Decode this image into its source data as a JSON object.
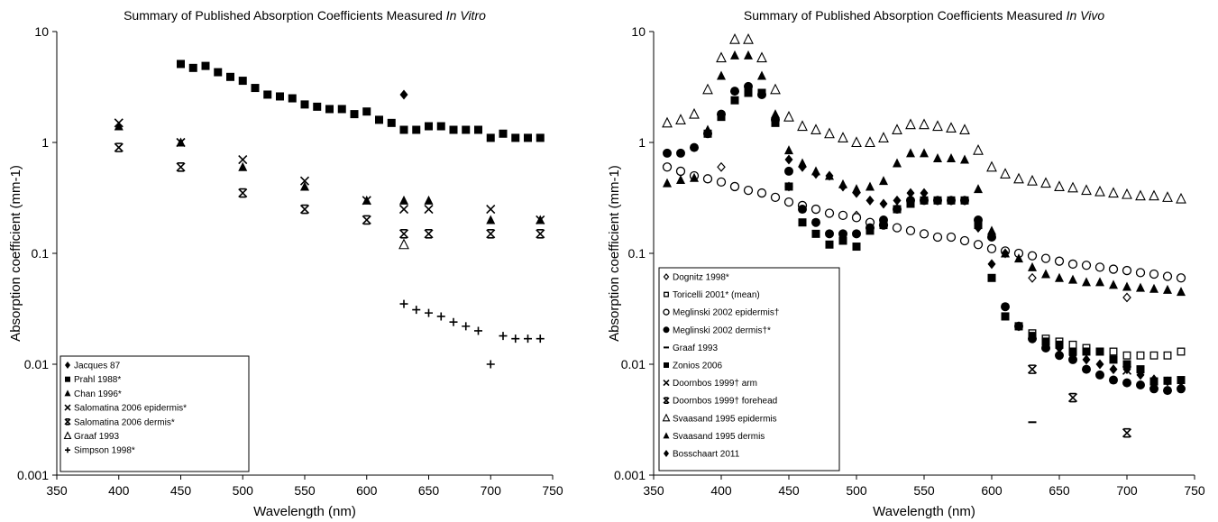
{
  "chart_data": [
    {
      "id": "invitro",
      "type": "scatter",
      "title": "Summary of Published Absorption Coefficients Measured",
      "title_italic": "In Vitro",
      "xlabel": "Wavelength (nm)",
      "ylabel": "Absorption coefficient (mm-1)",
      "xlim": [
        350,
        750
      ],
      "ylim": [
        0.001,
        10
      ],
      "yscale": "log",
      "xticks": [
        "350",
        "400",
        "450",
        "500",
        "550",
        "600",
        "650",
        "700",
        "750"
      ],
      "yticks": [
        "0.001",
        "0.01",
        "0.1",
        "1",
        "10"
      ],
      "grid": false,
      "legend": "bottom-left",
      "series": [
        {
          "name": "Jacques 87",
          "marker": "diamond-filled",
          "x": [
            630
          ],
          "y": [
            2.7
          ]
        },
        {
          "name": "Prahl 1988*",
          "marker": "square-filled",
          "x": [
            450,
            460,
            470,
            480,
            490,
            500,
            510,
            520,
            530,
            540,
            550,
            560,
            570,
            580,
            590,
            600,
            610,
            620,
            630,
            640,
            650,
            660,
            670,
            680,
            690,
            700,
            710,
            720,
            730,
            740
          ],
          "y": [
            5.1,
            4.7,
            4.9,
            4.3,
            3.9,
            3.6,
            3.1,
            2.7,
            2.6,
            2.5,
            2.2,
            2.1,
            2.0,
            2.0,
            1.8,
            1.9,
            1.6,
            1.5,
            1.3,
            1.3,
            1.4,
            1.4,
            1.3,
            1.3,
            1.3,
            1.1,
            1.2,
            1.1,
            1.1,
            1.1
          ]
        },
        {
          "name": "Chan 1996*",
          "marker": "triangle-filled",
          "x": [
            400,
            450,
            500,
            550,
            600,
            630,
            650,
            700,
            740
          ],
          "y": [
            1.4,
            1.0,
            0.6,
            0.4,
            0.3,
            0.3,
            0.3,
            0.2,
            0.2
          ]
        },
        {
          "name": "Salomatina 2006 epidermis*",
          "marker": "x",
          "x": [
            400,
            450,
            500,
            550,
            600,
            630,
            650,
            700,
            740
          ],
          "y": [
            1.5,
            1.0,
            0.7,
            0.45,
            0.3,
            0.25,
            0.25,
            0.25,
            0.2
          ]
        },
        {
          "name": "Salomatina 2006 dermis*",
          "marker": "bowtie",
          "x": [
            400,
            450,
            500,
            550,
            600,
            630,
            650,
            700,
            740
          ],
          "y": [
            0.9,
            0.6,
            0.35,
            0.25,
            0.2,
            0.15,
            0.15,
            0.15,
            0.15
          ]
        },
        {
          "name": "Graaf 1993",
          "marker": "triangle-open",
          "x": [
            630
          ],
          "y": [
            0.12
          ]
        },
        {
          "name": "Simpson 1998*",
          "marker": "plus",
          "x": [
            630,
            640,
            650,
            660,
            670,
            680,
            690,
            700,
            710,
            720,
            730,
            740
          ],
          "y": [
            0.035,
            0.031,
            0.029,
            0.027,
            0.024,
            0.022,
            0.02,
            0.01,
            0.018,
            0.017,
            0.017,
            0.017
          ]
        }
      ]
    },
    {
      "id": "invivo",
      "type": "scatter",
      "title": "Summary of Published Absorption Coefficients Measured",
      "title_italic": "In Vivo",
      "xlabel": "Wavelength (nm)",
      "ylabel": "Absorption coefficient (mm-1)",
      "xlim": [
        350,
        750
      ],
      "ylim": [
        0.001,
        10
      ],
      "yscale": "log",
      "xticks": [
        "350",
        "400",
        "450",
        "500",
        "550",
        "600",
        "650",
        "700",
        "750"
      ],
      "yticks": [
        "0.001",
        "0.01",
        "0.1",
        "1",
        "10"
      ],
      "grid": false,
      "legend": "bottom-left",
      "series": [
        {
          "name": "Dognitz 1998*",
          "marker": "diamond-open",
          "x": [
            400,
            450,
            500,
            630,
            700
          ],
          "y": [
            0.6,
            0.4,
            0.22,
            0.06,
            0.04
          ]
        },
        {
          "name": "Toricelli 2001* (mean)",
          "marker": "square-open",
          "x": [
            610,
            620,
            630,
            640,
            650,
            660,
            670,
            680,
            690,
            700,
            710,
            720,
            730,
            740
          ],
          "y": [
            0.027,
            0.022,
            0.019,
            0.017,
            0.016,
            0.015,
            0.014,
            0.013,
            0.013,
            0.012,
            0.012,
            0.012,
            0.012,
            0.013
          ]
        },
        {
          "name": "Meglinski 2002 epidermis†",
          "marker": "circle-open",
          "x": [
            360,
            370,
            380,
            390,
            400,
            410,
            420,
            430,
            440,
            450,
            460,
            470,
            480,
            490,
            500,
            510,
            520,
            530,
            540,
            550,
            560,
            570,
            580,
            590,
            600,
            610,
            620,
            630,
            640,
            650,
            660,
            670,
            680,
            690,
            700,
            710,
            720,
            730,
            740
          ],
          "y": [
            0.6,
            0.55,
            0.5,
            0.47,
            0.44,
            0.4,
            0.37,
            0.35,
            0.32,
            0.29,
            0.27,
            0.25,
            0.23,
            0.22,
            0.21,
            0.19,
            0.18,
            0.17,
            0.16,
            0.15,
            0.14,
            0.14,
            0.13,
            0.12,
            0.11,
            0.105,
            0.1,
            0.095,
            0.09,
            0.085,
            0.08,
            0.078,
            0.075,
            0.072,
            0.07,
            0.067,
            0.065,
            0.062,
            0.06
          ]
        },
        {
          "name": "Meglinski 2002 dermis†*",
          "marker": "circle-filled",
          "x": [
            360,
            370,
            380,
            390,
            400,
            410,
            420,
            430,
            440,
            450,
            460,
            470,
            480,
            490,
            500,
            510,
            520,
            530,
            540,
            550,
            560,
            570,
            580,
            590,
            600,
            610,
            620,
            630,
            640,
            650,
            660,
            670,
            680,
            690,
            700,
            710,
            720,
            730,
            740
          ],
          "y": [
            0.8,
            0.8,
            0.9,
            1.2,
            1.8,
            2.9,
            3.2,
            2.7,
            1.6,
            0.55,
            0.25,
            0.19,
            0.15,
            0.15,
            0.15,
            0.17,
            0.2,
            0.25,
            0.3,
            0.3,
            0.3,
            0.3,
            0.3,
            0.2,
            0.14,
            0.033,
            0.022,
            0.017,
            0.014,
            0.012,
            0.011,
            0.009,
            0.008,
            0.0072,
            0.0068,
            0.0065,
            0.006,
            0.0058,
            0.006
          ]
        },
        {
          "name": "Graaf 1993",
          "marker": "dash",
          "x": [
            630
          ],
          "y": [
            0.003
          ]
        },
        {
          "name": "Zonios 2006",
          "marker": "square-filled",
          "x": [
            390,
            400,
            410,
            420,
            430,
            440,
            450,
            460,
            470,
            480,
            490,
            500,
            510,
            520,
            530,
            540,
            550,
            560,
            570,
            580,
            590,
            600,
            610,
            620,
            630,
            640,
            650,
            660,
            670,
            680,
            690,
            700,
            710,
            720,
            730,
            740
          ],
          "y": [
            1.2,
            1.7,
            2.4,
            2.8,
            2.8,
            1.5,
            0.4,
            0.19,
            0.15,
            0.12,
            0.13,
            0.115,
            0.16,
            0.18,
            0.25,
            0.28,
            0.3,
            0.3,
            0.3,
            0.3,
            0.18,
            0.06,
            0.027,
            0.022,
            0.018,
            0.016,
            0.015,
            0.013,
            0.013,
            0.013,
            0.011,
            0.01,
            0.009,
            0.007,
            0.0071,
            0.0072
          ]
        },
        {
          "name": "Doornbos 1999† arm",
          "marker": "x",
          "x": [
            700
          ],
          "y": [
            0.0088
          ]
        },
        {
          "name": "Doornbos 1999† forehead",
          "marker": "bowtie",
          "x": [
            630,
            660,
            700
          ],
          "y": [
            0.009,
            0.005,
            0.0024
          ]
        },
        {
          "name": "Svaasand 1995 epidermis",
          "marker": "triangle-open",
          "x": [
            360,
            370,
            380,
            390,
            400,
            410,
            420,
            430,
            440,
            450,
            460,
            470,
            480,
            490,
            500,
            510,
            520,
            530,
            540,
            550,
            560,
            570,
            580,
            590,
            600,
            610,
            620,
            630,
            640,
            650,
            660,
            670,
            680,
            690,
            700,
            710,
            720,
            730,
            740
          ],
          "y": [
            1.5,
            1.6,
            1.8,
            3.0,
            5.8,
            8.5,
            8.5,
            5.8,
            3.0,
            1.7,
            1.4,
            1.3,
            1.2,
            1.1,
            1.0,
            1.0,
            1.1,
            1.3,
            1.45,
            1.45,
            1.4,
            1.35,
            1.3,
            0.85,
            0.6,
            0.52,
            0.47,
            0.45,
            0.43,
            0.4,
            0.39,
            0.37,
            0.36,
            0.35,
            0.34,
            0.33,
            0.33,
            0.32,
            0.31
          ]
        },
        {
          "name": "Svaasand 1995 dermis",
          "marker": "triangle-filled",
          "x": [
            360,
            370,
            380,
            390,
            400,
            410,
            420,
            430,
            440,
            450,
            460,
            470,
            480,
            490,
            500,
            510,
            520,
            530,
            540,
            550,
            560,
            570,
            580,
            590,
            600,
            610,
            620,
            630,
            640,
            650,
            660,
            670,
            680,
            690,
            700,
            710,
            720,
            730,
            740
          ],
          "y": [
            0.43,
            0.46,
            0.48,
            1.3,
            4.0,
            6.1,
            6.1,
            4.0,
            1.8,
            0.85,
            0.65,
            0.55,
            0.5,
            0.42,
            0.38,
            0.4,
            0.45,
            0.65,
            0.8,
            0.8,
            0.72,
            0.72,
            0.7,
            0.38,
            0.16,
            0.1,
            0.09,
            0.075,
            0.065,
            0.06,
            0.058,
            0.055,
            0.055,
            0.052,
            0.05,
            0.049,
            0.048,
            0.047,
            0.045
          ]
        },
        {
          "name": "Bosschaart 2011",
          "marker": "diamond-filled",
          "x": [
            450,
            460,
            470,
            480,
            490,
            500,
            510,
            520,
            530,
            540,
            550,
            560,
            570,
            580,
            590,
            600,
            610,
            620,
            630,
            640,
            650,
            660,
            670,
            680,
            690,
            700,
            710,
            720,
            730,
            740
          ],
          "y": [
            0.7,
            0.6,
            0.52,
            0.5,
            0.4,
            0.35,
            0.3,
            0.28,
            0.3,
            0.35,
            0.35,
            0.3,
            0.3,
            0.3,
            0.17,
            0.08,
            0.1,
            0.022,
            0.017,
            0.015,
            0.014,
            0.012,
            0.011,
            0.01,
            0.009,
            0.009,
            0.008,
            0.0073,
            0.007,
            0.007
          ]
        }
      ]
    }
  ]
}
